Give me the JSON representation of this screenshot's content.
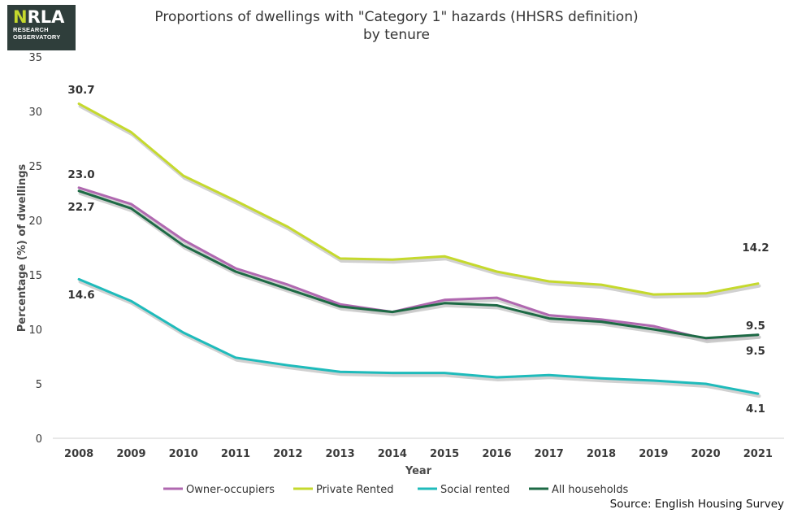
{
  "logo": {
    "brand_n": "N",
    "brand_rest": "RLA",
    "line1": "RESEARCH",
    "line2": "OBSERVATORY"
  },
  "colors": {
    "owner": "#b068b0",
    "private": "#c5d92d",
    "social": "#1fbbbb",
    "all": "#1d6a45",
    "shadow": "#c6c6c6"
  },
  "source": "Source: English Housing Survey",
  "chart_data": {
    "type": "line",
    "title": "Proportions of dwellings with \"Category 1\" hazards (HHSRS definition)",
    "subtitle": "by tenure",
    "xlabel": "Year",
    "ylabel": "Percentage (%) of dwellings",
    "ylim": [
      0,
      35
    ],
    "yticks": [
      0,
      5,
      10,
      15,
      20,
      25,
      30,
      35
    ],
    "categories": [
      "2008",
      "2009",
      "2010",
      "2011",
      "2012",
      "2013",
      "2014",
      "2015",
      "2016",
      "2017",
      "2018",
      "2019",
      "2020",
      "2021"
    ],
    "legend_position": "bottom",
    "series": [
      {
        "key": "owner",
        "name": "Owner-occupiers",
        "values": [
          23.0,
          21.5,
          18.2,
          15.6,
          14.1,
          12.3,
          11.6,
          12.7,
          12.9,
          11.3,
          10.9,
          10.3,
          9.1,
          9.5
        ]
      },
      {
        "key": "private",
        "name": "Private Rented",
        "values": [
          30.7,
          28.1,
          24.1,
          21.8,
          19.4,
          16.5,
          16.4,
          16.7,
          15.3,
          14.4,
          14.1,
          13.2,
          13.3,
          14.2
        ]
      },
      {
        "key": "social",
        "name": "Social rented",
        "values": [
          14.6,
          12.6,
          9.7,
          7.4,
          6.7,
          6.1,
          6.0,
          6.0,
          5.6,
          5.8,
          5.5,
          5.3,
          5.0,
          4.1
        ]
      },
      {
        "key": "all",
        "name": "All households",
        "values": [
          22.7,
          21.1,
          17.7,
          15.3,
          13.7,
          12.1,
          11.6,
          12.4,
          12.2,
          11.0,
          10.7,
          10.0,
          9.2,
          9.5
        ]
      }
    ],
    "annotations": [
      {
        "text": "30.7"
      },
      {
        "text": "23.0"
      },
      {
        "text": "22.7"
      },
      {
        "text": "14.6"
      },
      {
        "text": "14.2"
      },
      {
        "text": "9.5"
      },
      {
        "text": "9.5"
      },
      {
        "text": "4.1"
      }
    ]
  }
}
